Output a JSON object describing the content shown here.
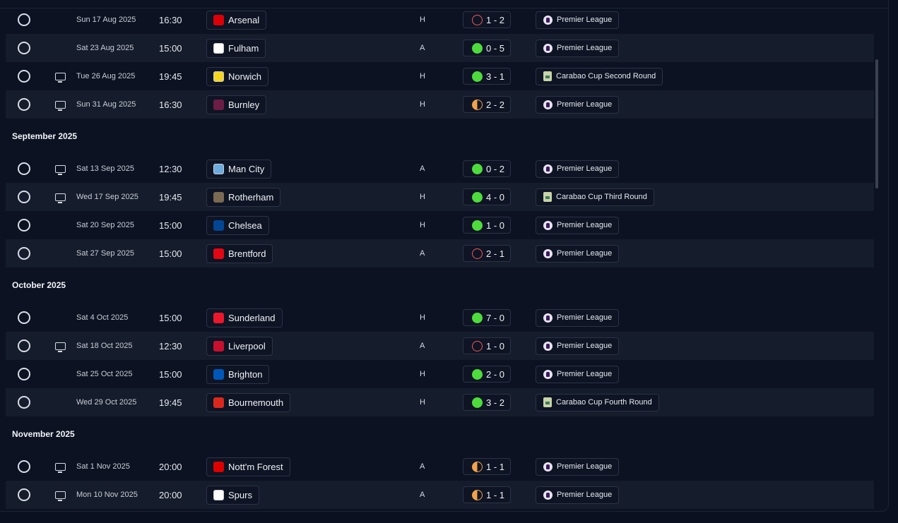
{
  "sections": [
    {
      "title": "",
      "matches": [
        {
          "tv": false,
          "date": "Sun 17 Aug 2025",
          "time": "16:30",
          "team": "Arsenal",
          "venue": "H",
          "result": "loss",
          "score": "1 - 2",
          "competition": "Premier League",
          "comp_icon": "pl"
        },
        {
          "tv": false,
          "date": "Sat 23 Aug 2025",
          "time": "15:00",
          "team": "Fulham",
          "venue": "A",
          "result": "win",
          "score": "0 - 5",
          "competition": "Premier League",
          "comp_icon": "pl"
        },
        {
          "tv": true,
          "date": "Tue 26 Aug 2025",
          "time": "19:45",
          "team": "Norwich",
          "venue": "H",
          "result": "win",
          "score": "3 - 1",
          "competition": "Carabao Cup Second Round",
          "comp_icon": "cup"
        },
        {
          "tv": true,
          "date": "Sun 31 Aug 2025",
          "time": "16:30",
          "team": "Burnley",
          "venue": "H",
          "result": "draw",
          "score": "2 - 2",
          "competition": "Premier League",
          "comp_icon": "pl"
        }
      ]
    },
    {
      "title": "September 2025",
      "matches": [
        {
          "tv": true,
          "date": "Sat 13 Sep 2025",
          "time": "12:30",
          "team": "Man City",
          "venue": "A",
          "result": "win",
          "score": "0 - 2",
          "competition": "Premier League",
          "comp_icon": "pl"
        },
        {
          "tv": true,
          "date": "Wed 17 Sep 2025",
          "time": "19:45",
          "team": "Rotherham",
          "venue": "H",
          "result": "win",
          "score": "4 - 0",
          "competition": "Carabao Cup Third Round",
          "comp_icon": "cup"
        },
        {
          "tv": false,
          "date": "Sat 20 Sep 2025",
          "time": "15:00",
          "team": "Chelsea",
          "venue": "H",
          "result": "win",
          "score": "1 - 0",
          "competition": "Premier League",
          "comp_icon": "pl"
        },
        {
          "tv": false,
          "date": "Sat 27 Sep 2025",
          "time": "15:00",
          "team": "Brentford",
          "venue": "A",
          "result": "loss",
          "score": "2 - 1",
          "competition": "Premier League",
          "comp_icon": "pl"
        }
      ]
    },
    {
      "title": "October 2025",
      "matches": [
        {
          "tv": false,
          "date": "Sat 4 Oct 2025",
          "time": "15:00",
          "team": "Sunderland",
          "venue": "H",
          "result": "win",
          "score": "7 - 0",
          "competition": "Premier League",
          "comp_icon": "pl"
        },
        {
          "tv": true,
          "date": "Sat 18 Oct 2025",
          "time": "12:30",
          "team": "Liverpool",
          "venue": "A",
          "result": "loss",
          "score": "1 - 0",
          "competition": "Premier League",
          "comp_icon": "pl"
        },
        {
          "tv": false,
          "date": "Sat 25 Oct 2025",
          "time": "15:00",
          "team": "Brighton",
          "venue": "H",
          "result": "win",
          "score": "2 - 0",
          "competition": "Premier League",
          "comp_icon": "pl"
        },
        {
          "tv": false,
          "date": "Wed 29 Oct 2025",
          "time": "19:45",
          "team": "Bournemouth",
          "venue": "H",
          "result": "win",
          "score": "3 - 2",
          "competition": "Carabao Cup Fourth Round",
          "comp_icon": "cup"
        }
      ]
    },
    {
      "title": "November 2025",
      "matches": [
        {
          "tv": true,
          "date": "Sat 1 Nov 2025",
          "time": "20:00",
          "team": "Nott'm Forest",
          "venue": "A",
          "result": "draw",
          "score": "1 - 1",
          "competition": "Premier League",
          "comp_icon": "pl"
        },
        {
          "tv": true,
          "date": "Mon 10 Nov 2025",
          "time": "20:00",
          "team": "Spurs",
          "venue": "A",
          "result": "draw",
          "score": "1 - 1",
          "competition": "Premier League",
          "comp_icon": "pl"
        }
      ]
    }
  ],
  "team_colors": {
    "Arsenal": "#db0007",
    "Fulham": "#ffffff",
    "Norwich": "#f6d51c",
    "Burnley": "#6c1d45",
    "Man City": "#6cabdd",
    "Rotherham": "#7a6a52",
    "Chelsea": "#034694",
    "Brentford": "#e30613",
    "Sunderland": "#eb172b",
    "Liverpool": "#c8102e",
    "Brighton": "#0057b8",
    "Bournemouth": "#da291c",
    "Nott'm Forest": "#dd0000",
    "Spurs": "#ffffff"
  },
  "colors": {
    "win": "#4ddc3c",
    "loss": "#ef5b5b",
    "draw": "#f0a24c"
  }
}
